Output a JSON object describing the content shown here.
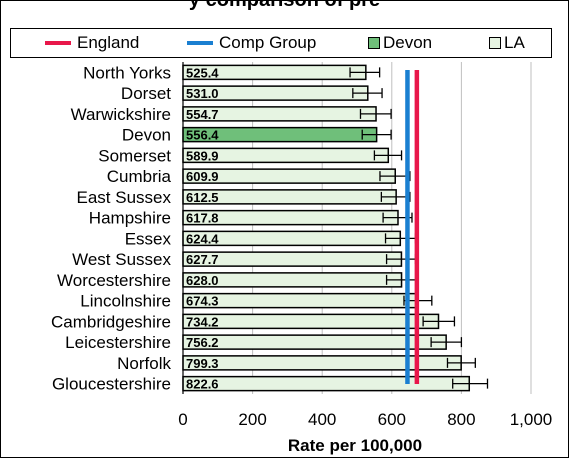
{
  "chart_data": {
    "type": "bar",
    "orientation": "horizontal",
    "title": "y comparison of pre",
    "xlabel": "Rate per 100,000",
    "xlim": [
      0,
      1000
    ],
    "xticks": [
      "0",
      "200",
      "400",
      "600",
      "800",
      "1,000"
    ],
    "grid": "vertical",
    "legend_position": "top",
    "legend": [
      {
        "label": "England",
        "kind": "line",
        "color": "#e8174a"
      },
      {
        "label": "Comp Group",
        "kind": "line",
        "color": "#1a7fd1"
      },
      {
        "label": "Devon",
        "kind": "box",
        "color": "#6fbf7a"
      },
      {
        "label": "LA",
        "kind": "box",
        "color": "#e6f4e2"
      }
    ],
    "reference_lines": [
      {
        "name": "England",
        "value": 672,
        "color": "#e8174a"
      },
      {
        "name": "Comp Group",
        "value": 645,
        "color": "#1a7fd1"
      }
    ],
    "highlight": "Devon",
    "categories": [
      "North Yorks",
      "Dorset",
      "Warwickshire",
      "Devon",
      "Somerset",
      "Cumbria",
      "East Sussex",
      "Hampshire",
      "Essex",
      "West Sussex",
      "Worcestershire",
      "Lincolnshire",
      "Cambridgeshire",
      "Leicestershire",
      "Norfolk",
      "Gloucestershire"
    ],
    "values": [
      525.4,
      531.0,
      554.7,
      556.4,
      589.9,
      609.9,
      612.5,
      617.8,
      624.4,
      627.7,
      628.0,
      674.3,
      734.2,
      756.2,
      799.3,
      822.6
    ],
    "value_labels": [
      "525.4",
      "531.0",
      "554.7",
      "556.4",
      "589.9",
      "609.9",
      "612.5",
      "617.8",
      "624.4",
      "627.7",
      "628.0",
      "674.3",
      "734.2",
      "756.2",
      "799.3",
      "822.6"
    ],
    "error_low": [
      480,
      488,
      510,
      515,
      550,
      566,
      570,
      575,
      582,
      585,
      585,
      635,
      690,
      713,
      760,
      775
    ],
    "error_high": [
      565,
      572,
      598,
      598,
      628,
      652,
      652,
      658,
      668,
      668,
      670,
      715,
      780,
      800,
      840,
      875
    ],
    "colors": {
      "bar": "#e6f4e2",
      "highlight_bar": "#6fbf7a",
      "grid": "#bfbfbf"
    }
  }
}
